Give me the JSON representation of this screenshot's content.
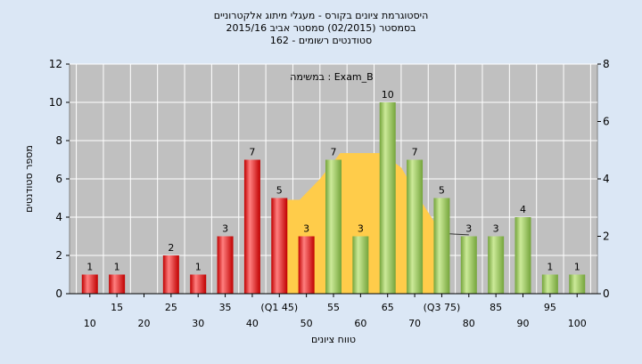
{
  "chart_data": {
    "type": "bar",
    "title_lines": [
      "היסטוגרמת ציונים בקורס - מעגלי מיתוג אלקטרוניים",
      "בסמסטר (02/2015) סמסטר אביב 2015/16",
      "סטודנטים רשומים - 162"
    ],
    "xlabel": "טווח ציונים",
    "ylabel": "מספר סטודנטים",
    "legend_text": "במשימה : Exam_B",
    "ylim": [
      0,
      12
    ],
    "yticks": [
      "0",
      "2",
      "4",
      "6",
      "8",
      "10",
      "12"
    ],
    "y2lim": [
      0,
      8
    ],
    "y2ticks": [
      "0",
      "2",
      "4",
      "6",
      "8"
    ],
    "grid": true,
    "categories": [
      "10",
      "15",
      "20",
      "25",
      "30",
      "35",
      "40",
      "(Q1 45)",
      "50",
      "55",
      "60",
      "65",
      "70",
      "(Q3 75)",
      "80",
      "85",
      "90",
      "95",
      "100"
    ],
    "values": [
      1,
      1,
      0,
      2,
      1,
      3,
      7,
      5,
      3,
      7,
      3,
      10,
      7,
      5,
      3,
      3,
      4,
      1,
      1
    ],
    "value_labels": [
      "1",
      "1",
      "",
      "2",
      "1",
      "3",
      "7",
      "5",
      "3",
      "7",
      "3",
      "10",
      "7",
      "5",
      "3",
      "3",
      "4",
      "1",
      "1"
    ],
    "bar_colors": [
      "red",
      "red",
      "red",
      "red",
      "red",
      "red",
      "red",
      "red",
      "red",
      "green",
      "green",
      "green",
      "green",
      "green",
      "green",
      "green",
      "green",
      "green",
      "green"
    ],
    "colors": {
      "red_light": "#ff7f7f",
      "red_dark": "#c00000",
      "green_light": "#ccea99",
      "green_dark": "#74a43b",
      "band": "#ffcc4a",
      "plot_bg": "#c0c0c0",
      "page_bg": "#dbe7f5",
      "line": "#333333"
    },
    "iqr_band": {
      "x_start": 45,
      "x_end": 75,
      "y2_values": [
        3.27,
        3.27,
        4.0,
        4.9,
        4.9,
        4.9,
        4.4,
        3.2,
        2.1
      ]
    }
  }
}
